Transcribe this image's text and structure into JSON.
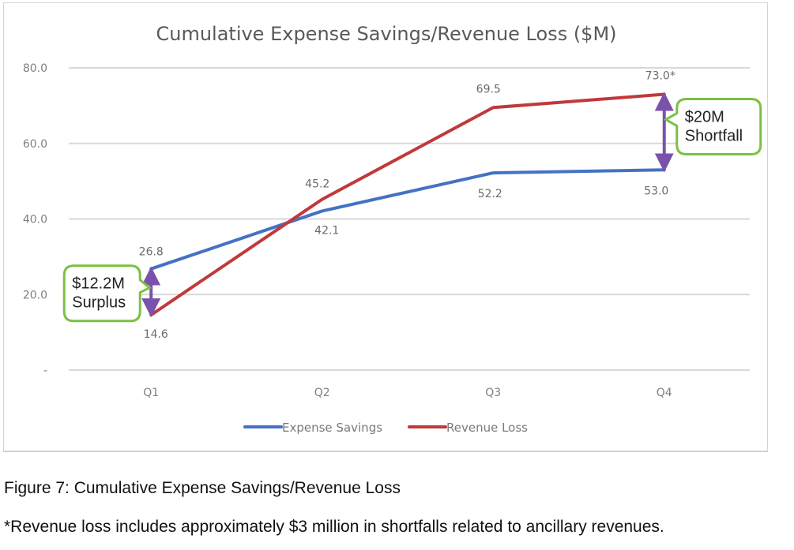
{
  "chart_data": {
    "type": "line",
    "title": "Cumulative Expense Savings/Revenue Loss ($M)",
    "xlabel": "",
    "ylabel": "",
    "categories": [
      "Q1",
      "Q2",
      "Q3",
      "Q4"
    ],
    "ylim": [
      0,
      80
    ],
    "yticks": [
      0,
      20,
      40,
      60,
      80
    ],
    "ytick_labels": [
      "-",
      "20.0",
      "40.0",
      "60.0",
      "80.0"
    ],
    "grid": true,
    "legend": "bottom",
    "series": [
      {
        "name": "Expense Savings",
        "color": "#4472c4",
        "values": [
          26.8,
          42.1,
          52.2,
          53.0
        ],
        "labels": [
          "26.8",
          "42.1",
          "52.2",
          "53.0"
        ]
      },
      {
        "name": "Revenue Loss",
        "color": "#c0393b",
        "values": [
          14.6,
          45.2,
          69.5,
          73.0
        ],
        "labels": [
          "14.6",
          "45.2",
          "69.5",
          "73.0*"
        ]
      }
    ],
    "annotations": [
      {
        "category": "Q1",
        "from": 14.6,
        "to": 26.8,
        "lines": [
          "$12.2M",
          "Surplus"
        ],
        "side": "left",
        "arrow_color": "#7b52ab",
        "box_color": "#7ac142"
      },
      {
        "category": "Q4",
        "from": 53.0,
        "to": 73.0,
        "lines": [
          "$20M",
          "Shortfall"
        ],
        "side": "right",
        "arrow_color": "#7b52ab",
        "box_color": "#7ac142"
      }
    ]
  },
  "caption": {
    "figure": "Figure 7: Cumulative Expense Savings/Revenue Loss",
    "footnote": "*Revenue loss includes approximately $3 million in shortfalls related to ancillary revenues."
  }
}
